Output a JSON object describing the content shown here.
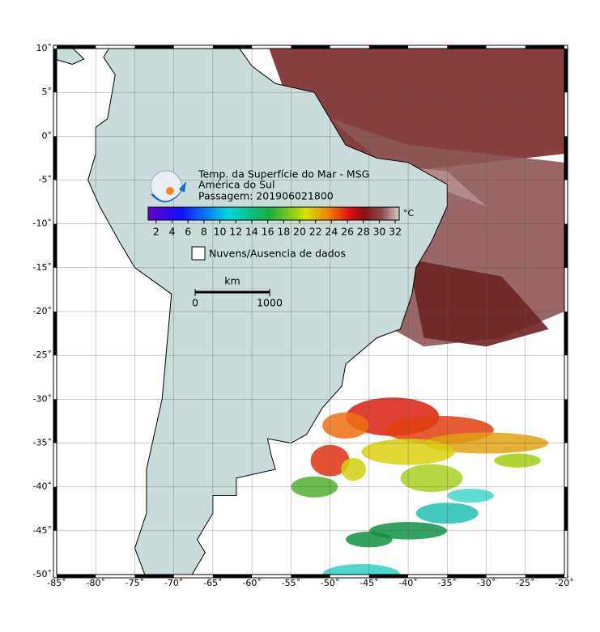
{
  "map": {
    "title": "Temp. da Superfície do Mar - MSG",
    "subtitle": "América do Sul",
    "pass": "Passagem: 201906021800",
    "colorbar": {
      "unit": "°C",
      "lim": [
        1,
        32.5
      ],
      "ticks": [
        2,
        4,
        6,
        8,
        10,
        12,
        14,
        16,
        18,
        20,
        22,
        24,
        26,
        28,
        30,
        32
      ]
    },
    "legend": "Nuvens/Ausencia de dados",
    "scale_bar": {
      "unit": "km",
      "ticks": [
        0,
        1000
      ]
    },
    "xlim": [
      -85,
      -20
    ],
    "ylim": [
      -50,
      10
    ],
    "xticks": [
      {
        "value": -85,
        "label": "-85˚"
      },
      {
        "value": -80,
        "label": "-80˚"
      },
      {
        "value": -75,
        "label": "-75˚"
      },
      {
        "value": -70,
        "label": "-70˚"
      },
      {
        "value": -65,
        "label": "-65˚"
      },
      {
        "value": -60,
        "label": "-60˚"
      },
      {
        "value": -55,
        "label": "-55˚"
      },
      {
        "value": -50,
        "label": "-50˚"
      },
      {
        "value": -45,
        "label": "-45˚"
      },
      {
        "value": -40,
        "label": "-40˚"
      },
      {
        "value": -35,
        "label": "-35˚"
      },
      {
        "value": -30,
        "label": "-30˚"
      },
      {
        "value": -25,
        "label": "-25˚"
      },
      {
        "value": -20,
        "label": "-20˚"
      }
    ],
    "yticks": [
      {
        "value": 10,
        "label": "10˚"
      },
      {
        "value": 5,
        "label": "5˚"
      },
      {
        "value": 0,
        "label": "0˚"
      },
      {
        "value": -5,
        "label": "-5˚"
      },
      {
        "value": -10,
        "label": "-10˚"
      },
      {
        "value": -15,
        "label": "-15˚"
      },
      {
        "value": -20,
        "label": "-20˚"
      },
      {
        "value": -25,
        "label": "-25˚"
      },
      {
        "value": -30,
        "label": "-30˚"
      },
      {
        "value": -35,
        "label": "-35˚"
      },
      {
        "value": -40,
        "label": "-40˚"
      },
      {
        "value": -45,
        "label": "-45˚"
      },
      {
        "value": -50,
        "label": "-50˚"
      }
    ]
  }
}
